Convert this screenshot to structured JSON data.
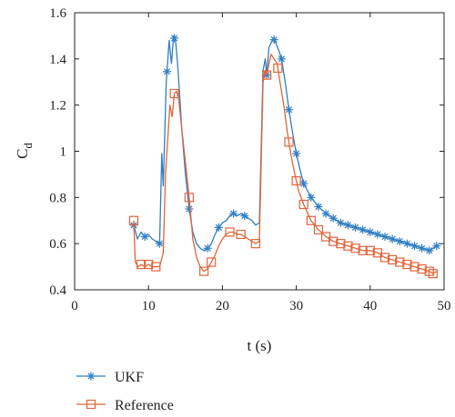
{
  "chart_data": {
    "type": "line",
    "title": "",
    "xlabel": "t (s)",
    "ylabel": "C",
    "ylabel_subscript": "d",
    "xlim": [
      0,
      50
    ],
    "ylim": [
      0.4,
      1.6
    ],
    "xticks": [
      0,
      10,
      20,
      30,
      40,
      50
    ],
    "yticks": [
      0.4,
      0.6,
      0.8,
      1,
      1.2,
      1.4,
      1.6
    ],
    "xtick_labels": [
      "0",
      "10",
      "20",
      "30",
      "40",
      "50"
    ],
    "ytick_labels": [
      "0.4",
      "0.6",
      "0.8",
      "1",
      "1.2",
      "1.4",
      "1.6"
    ],
    "grid": false,
    "legend_position": "bottom-left, below plot",
    "series": [
      {
        "name": "UKF",
        "color": "#2f7ec2",
        "marker": "asterisk",
        "x": [
          8.0,
          8.5,
          9.0,
          9.5,
          10.0,
          10.5,
          11.0,
          11.5,
          11.8,
          12.0,
          12.4,
          12.8,
          13.1,
          13.4,
          13.7,
          14.0,
          14.5,
          15.0,
          15.5,
          16.0,
          16.5,
          17.0,
          17.5,
          18.0,
          18.5,
          19.0,
          19.5,
          20.0,
          20.5,
          21.0,
          21.5,
          22.0,
          22.5,
          23.0,
          23.5,
          24.0,
          24.5,
          25.0,
          25.5,
          25.8,
          26.0,
          26.3,
          26.6,
          26.9,
          27.2,
          27.6,
          28.0,
          28.5,
          29.0,
          29.5,
          30.0,
          30.5,
          31.0,
          32.0,
          33.0,
          34.0,
          35.0,
          36.0,
          37.0,
          38.0,
          39.0,
          40.0,
          41.0,
          42.0,
          43.0,
          44.0,
          45.0,
          46.0,
          47.0,
          48.0,
          48.5,
          49.0
        ],
        "y": [
          0.68,
          0.62,
          0.65,
          0.63,
          0.64,
          0.62,
          0.61,
          0.6,
          0.99,
          0.85,
          1.3,
          1.48,
          1.38,
          1.5,
          1.47,
          1.35,
          1.1,
          0.9,
          0.75,
          0.65,
          0.6,
          0.58,
          0.57,
          0.58,
          0.6,
          0.64,
          0.67,
          0.69,
          0.7,
          0.72,
          0.73,
          0.72,
          0.73,
          0.72,
          0.71,
          0.7,
          0.68,
          0.69,
          1.35,
          1.4,
          1.33,
          1.45,
          1.47,
          1.49,
          1.47,
          1.44,
          1.4,
          1.3,
          1.18,
          1.08,
          0.99,
          0.92,
          0.86,
          0.8,
          0.76,
          0.73,
          0.71,
          0.69,
          0.68,
          0.67,
          0.66,
          0.65,
          0.64,
          0.63,
          0.62,
          0.61,
          0.6,
          0.59,
          0.58,
          0.57,
          0.58,
          0.59
        ],
        "marker_x": [
          8.0,
          9.5,
          11.5,
          12.5,
          13.5,
          15.5,
          18.0,
          19.5,
          21.5,
          23.0,
          26.0,
          27.0,
          28.0,
          29.0,
          30.0,
          31.0,
          32.0,
          33.0,
          34.0,
          35.0,
          36.0,
          37.0,
          38.0,
          39.0,
          40.0,
          41.0,
          42.0,
          43.0,
          44.0,
          45.0,
          46.0,
          47.0,
          48.0,
          49.0
        ]
      },
      {
        "name": "Reference",
        "color": "#e2643a",
        "marker": "square",
        "x": [
          8.0,
          8.2,
          8.6,
          9.0,
          9.5,
          10.0,
          10.5,
          11.0,
          11.5,
          12.0,
          12.3,
          12.6,
          12.9,
          13.2,
          13.5,
          13.8,
          14.1,
          14.5,
          15.0,
          15.5,
          16.0,
          16.5,
          17.0,
          17.5,
          18.0,
          18.5,
          19.0,
          19.5,
          20.0,
          20.5,
          21.0,
          21.5,
          22.0,
          22.5,
          23.0,
          23.5,
          24.0,
          24.5,
          25.0,
          25.5,
          25.8,
          26.0,
          26.3,
          26.6,
          27.0,
          27.4,
          27.8,
          28.3,
          28.8,
          29.3,
          29.8,
          30.3,
          31.0,
          32.0,
          33.0,
          34.0,
          35.0,
          36.0,
          37.0,
          38.0,
          39.0,
          40.0,
          41.0,
          42.0,
          43.0,
          44.0,
          45.0,
          46.0,
          47.0,
          48.0,
          48.5,
          49.0
        ],
        "y": [
          0.7,
          0.52,
          0.5,
          0.51,
          0.5,
          0.51,
          0.5,
          0.5,
          0.5,
          0.56,
          0.9,
          1.05,
          1.2,
          1.15,
          1.25,
          1.26,
          1.22,
          1.1,
          0.95,
          0.8,
          0.62,
          0.54,
          0.5,
          0.48,
          0.49,
          0.52,
          0.55,
          0.59,
          0.62,
          0.64,
          0.65,
          0.65,
          0.64,
          0.64,
          0.63,
          0.62,
          0.61,
          0.6,
          0.61,
          1.3,
          1.35,
          1.33,
          1.38,
          1.42,
          1.4,
          1.38,
          1.3,
          1.2,
          1.08,
          0.98,
          0.9,
          0.83,
          0.77,
          0.7,
          0.66,
          0.63,
          0.61,
          0.6,
          0.59,
          0.58,
          0.57,
          0.57,
          0.56,
          0.54,
          0.53,
          0.52,
          0.51,
          0.5,
          0.49,
          0.48,
          0.47,
          0.48
        ],
        "marker_x": [
          8.0,
          9.0,
          10.0,
          11.0,
          13.5,
          15.5,
          17.5,
          18.5,
          21.0,
          22.5,
          24.5,
          26.0,
          27.5,
          29.0,
          30.0,
          31.0,
          32.0,
          33.0,
          34.0,
          35.0,
          36.0,
          37.0,
          38.0,
          39.0,
          40.0,
          41.0,
          42.0,
          43.0,
          44.0,
          45.0,
          46.0,
          47.0,
          48.0,
          48.5
        ]
      }
    ]
  }
}
